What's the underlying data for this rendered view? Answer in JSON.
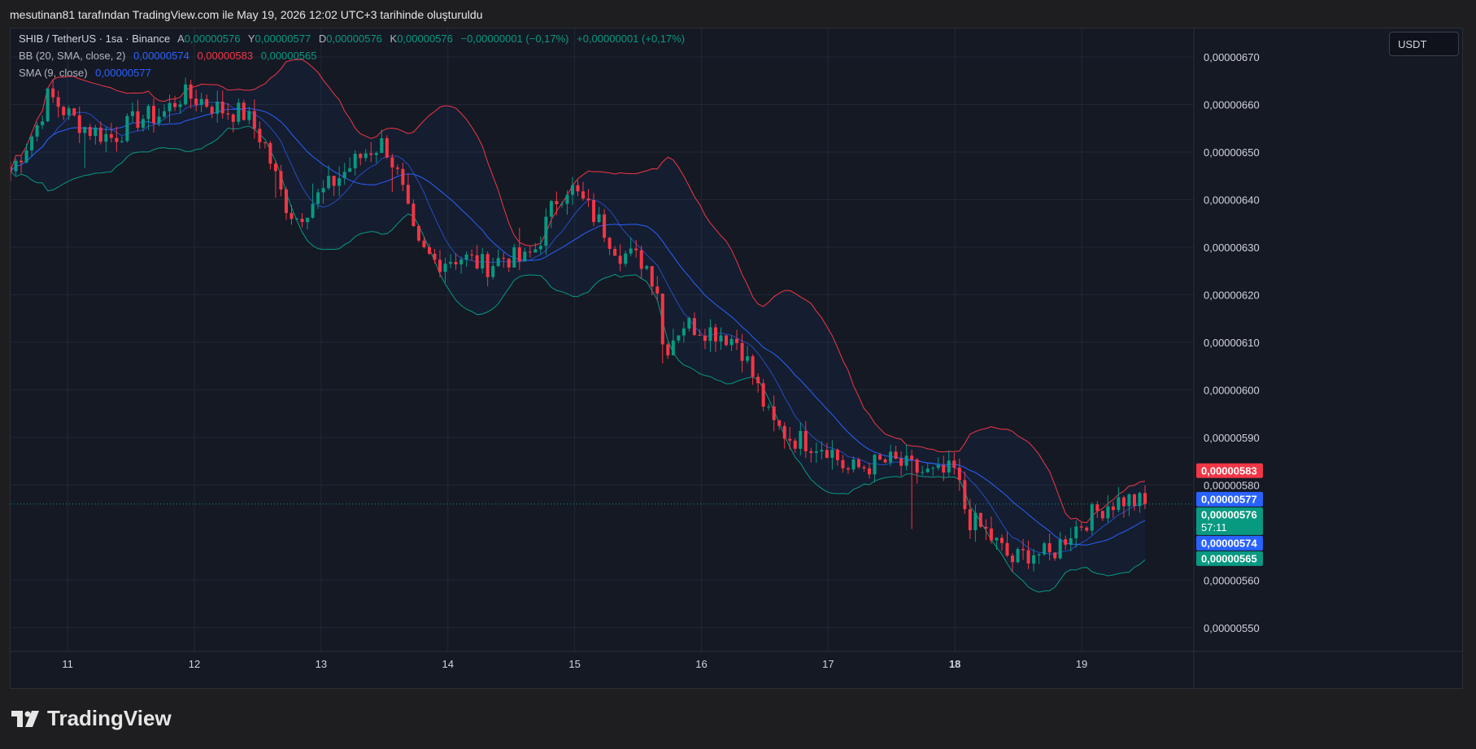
{
  "header": {
    "created_by": "mesutinan81 tarafından TradingView.com ile May 19, 2026 12:02 UTC+3 tarihinde oluşturuldu"
  },
  "legend": {
    "symbol": "SHIB / TetherUS · 1sa · Binance",
    "ohlc": {
      "o_label": "A",
      "o": "0,00000576",
      "h_label": "Y",
      "h": "0,00000577",
      "l_label": "D",
      "l": "0,00000576",
      "c_label": "K",
      "c": "0,00000576",
      "change": "−0,00000001 (−0,17%)",
      "change2": "+0,00000001 (+0,17%)"
    },
    "bb_label": "BB (20, SMA, close, 2)",
    "bb_values": [
      "0,00000574",
      "0,00000583",
      "0,00000565"
    ],
    "sma_label": "SMA (9, close)",
    "sma_value": "0,00000577"
  },
  "currency_button": "USDT",
  "brand": "TradingView",
  "colors": {
    "background": "#151924",
    "up": "#089981",
    "down": "#f23645",
    "bb_basis": "#2962ff",
    "bb_upper": "#f23645",
    "bb_lower": "#089981",
    "sma": "#2962ff",
    "band_fill": "#2962ff"
  },
  "price_badges": [
    {
      "text": "0,00000583",
      "color": "#f23645",
      "value": 5.83
    },
    {
      "text": "0,00000577",
      "color": "#2962ff",
      "value": 5.77
    },
    {
      "text": "0,00000576",
      "sub": "57:11",
      "color": "#089981",
      "value": 5.76
    },
    {
      "text": "0,00000574",
      "color": "#2962ff",
      "value": 5.74
    },
    {
      "text": "0,00000565",
      "color": "#089981",
      "value": 5.65
    }
  ],
  "chart_data": {
    "type": "candlestick",
    "symbol": "SHIB / TetherUS",
    "interval": "1sa",
    "exchange": "Binance",
    "y_unit_note": "values in 1e-6 USDT",
    "ylim": [
      5.45,
      6.76
    ],
    "y_ticks": [
      {
        "v": 6.7,
        "label": "0,00000670"
      },
      {
        "v": 6.6,
        "label": "0,00000660"
      },
      {
        "v": 6.5,
        "label": "0,00000650"
      },
      {
        "v": 6.4,
        "label": "0,00000640"
      },
      {
        "v": 6.3,
        "label": "0,00000630"
      },
      {
        "v": 6.2,
        "label": "0,00000620"
      },
      {
        "v": 6.1,
        "label": "0,00000610"
      },
      {
        "v": 6.0,
        "label": "0,00000600"
      },
      {
        "v": 5.9,
        "label": "0,00000590"
      },
      {
        "v": 5.8,
        "label": "0,00000580"
      },
      {
        "v": 5.6,
        "label": "0,00000560"
      },
      {
        "v": 5.5,
        "label": "0,00000550"
      }
    ],
    "x_ticks": [
      {
        "label": "11",
        "day": 11,
        "bold": false
      },
      {
        "label": "12",
        "day": 12,
        "bold": false
      },
      {
        "label": "13",
        "day": 13,
        "bold": false
      },
      {
        "label": "14",
        "day": 14,
        "bold": false
      },
      {
        "label": "15",
        "day": 15,
        "bold": false
      },
      {
        "label": "16",
        "day": 16,
        "bold": false
      },
      {
        "label": "17",
        "day": 17,
        "bold": false
      },
      {
        "label": "18",
        "day": 18,
        "bold": true
      },
      {
        "label": "19",
        "day": 19,
        "bold": false
      }
    ],
    "x_range_days": [
      10.55,
      19.5
    ],
    "last_price": 5.76,
    "close_anchors": [
      [
        10.55,
        6.46
      ],
      [
        10.75,
        6.55
      ],
      [
        10.85,
        6.62
      ],
      [
        11.0,
        6.58
      ],
      [
        11.15,
        6.55
      ],
      [
        11.35,
        6.53
      ],
      [
        11.55,
        6.57
      ],
      [
        11.75,
        6.58
      ],
      [
        11.9,
        6.62
      ],
      [
        12.05,
        6.61
      ],
      [
        12.2,
        6.59
      ],
      [
        12.4,
        6.58
      ],
      [
        12.55,
        6.52
      ],
      [
        12.7,
        6.4
      ],
      [
        12.8,
        6.36
      ],
      [
        12.95,
        6.4
      ],
      [
        13.15,
        6.45
      ],
      [
        13.35,
        6.5
      ],
      [
        13.5,
        6.52
      ],
      [
        13.62,
        6.44
      ],
      [
        13.75,
        6.3
      ],
      [
        13.9,
        6.27
      ],
      [
        14.1,
        6.28
      ],
      [
        14.3,
        6.26
      ],
      [
        14.45,
        6.28
      ],
      [
        14.6,
        6.27
      ],
      [
        14.7,
        6.3
      ],
      [
        14.85,
        6.4
      ],
      [
        14.95,
        6.43
      ],
      [
        15.05,
        6.4
      ],
      [
        15.2,
        6.35
      ],
      [
        15.35,
        6.29
      ],
      [
        15.55,
        6.27
      ],
      [
        15.65,
        6.22
      ],
      [
        15.7,
        6.08
      ],
      [
        15.85,
        6.14
      ],
      [
        16.0,
        6.13
      ],
      [
        16.15,
        6.12
      ],
      [
        16.3,
        6.1
      ],
      [
        16.45,
        6.0
      ],
      [
        16.55,
        5.93
      ],
      [
        16.7,
        5.9
      ],
      [
        16.85,
        5.89
      ],
      [
        17.0,
        5.88
      ],
      [
        17.15,
        5.83
      ],
      [
        17.3,
        5.84
      ],
      [
        17.5,
        5.85
      ],
      [
        17.7,
        5.83
      ],
      [
        17.85,
        5.82
      ],
      [
        18.0,
        5.83
      ],
      [
        18.1,
        5.73
      ],
      [
        18.25,
        5.7
      ],
      [
        18.45,
        5.64
      ],
      [
        18.6,
        5.66
      ],
      [
        18.75,
        5.65
      ],
      [
        18.9,
        5.7
      ],
      [
        19.05,
        5.73
      ],
      [
        19.2,
        5.76
      ],
      [
        19.35,
        5.77
      ],
      [
        19.5,
        5.76
      ]
    ]
  }
}
